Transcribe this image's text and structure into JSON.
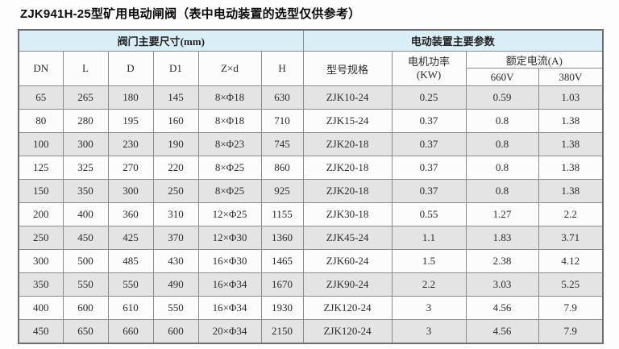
{
  "page": {
    "title": "ZJK941H-25型矿用电动闸阀（表中电动装置的选型仅供参考）"
  },
  "table": {
    "group_headers": {
      "valve": "阀门主要尺寸(mm)",
      "actuator": "电动装置主要参数"
    },
    "columns": {
      "dn": "DN",
      "l": "L",
      "d": "D",
      "d1": "D1",
      "zxd": "Z×d",
      "h": "H",
      "model": "型号规格",
      "motor_power_line1": "电机功率",
      "motor_power_line2": "(KW)",
      "rated_current": "额定电流(A)",
      "v660": "660V",
      "v380": "380V"
    },
    "column_keys": [
      "dn",
      "l",
      "d",
      "d1",
      "zxd",
      "h",
      "model",
      "power-kw",
      "current-660v",
      "current-380v"
    ],
    "rows": [
      [
        "65",
        "265",
        "180",
        "145",
        "8×Φ18",
        "630",
        "ZJK10-24",
        "0.25",
        "0.59",
        "1.03"
      ],
      [
        "80",
        "280",
        "195",
        "160",
        "8×Φ18",
        "710",
        "ZJK15-24",
        "0.37",
        "0.8",
        "1.38"
      ],
      [
        "100",
        "300",
        "230",
        "190",
        "8×Φ23",
        "745",
        "ZJK20-18",
        "0.37",
        "0.8",
        "1.38"
      ],
      [
        "125",
        "325",
        "270",
        "220",
        "8×Φ25",
        "860",
        "ZJK20-18",
        "0.37",
        "0.8",
        "1.38"
      ],
      [
        "150",
        "350",
        "300",
        "250",
        "8×Φ25",
        "925",
        "ZJK20-18",
        "0.37",
        "0.8",
        "1.38"
      ],
      [
        "200",
        "400",
        "360",
        "310",
        "12×Φ25",
        "1155",
        "ZJK30-18",
        "0.55",
        "1.27",
        "2.2"
      ],
      [
        "250",
        "450",
        "425",
        "370",
        "12×Φ30",
        "1360",
        "ZJK45-24",
        "1.1",
        "1.83",
        "3.71"
      ],
      [
        "300",
        "500",
        "485",
        "430",
        "16×Φ30",
        "1465",
        "ZJK60-24",
        "1.5",
        "2.38",
        "4.12"
      ],
      [
        "350",
        "550",
        "550",
        "490",
        "16×Φ34",
        "1670",
        "ZJK90-24",
        "2.2",
        "3.03",
        "5.25"
      ],
      [
        "400",
        "600",
        "610",
        "550",
        "16×Φ34",
        "1930",
        "ZJK120-24",
        "3",
        "4.56",
        "7.9"
      ],
      [
        "450",
        "650",
        "660",
        "600",
        "20×Φ34",
        "2150",
        "ZJK120-24",
        "3",
        "4.56",
        "7.9"
      ]
    ]
  },
  "colors": {
    "header_band_blue": "#daeef8",
    "row_shade_gray": "#e4e4e4",
    "row_white": "#fcfcfc",
    "border_gray": "#8b8b8b"
  }
}
